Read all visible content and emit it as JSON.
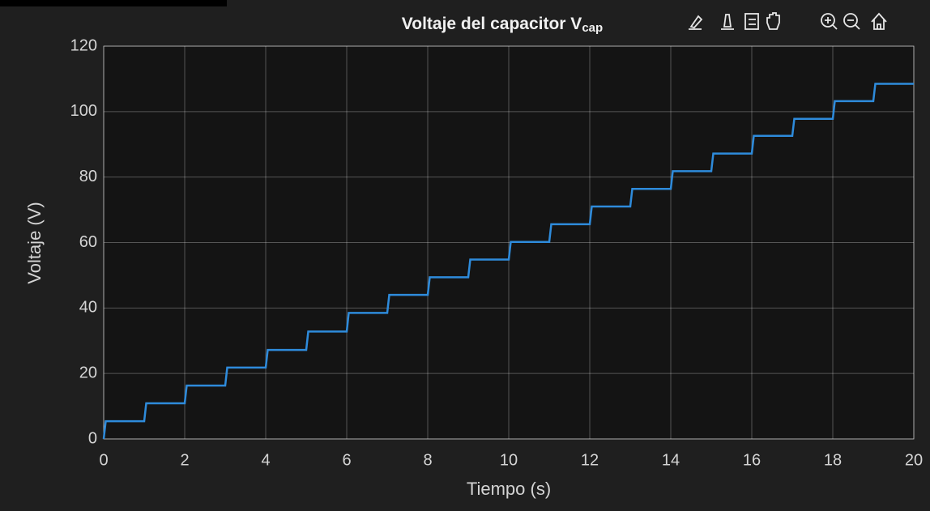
{
  "chart_data": {
    "type": "line",
    "title": "Voltaje del capacitor V",
    "title_subscript": "cap",
    "xlabel": "Tiempo (s)",
    "ylabel": "Voltaje (V)",
    "x": [
      0,
      0.05,
      1,
      1.05,
      2,
      2.05,
      3,
      3.05,
      4,
      4.05,
      5,
      5.05,
      6,
      6.05,
      7,
      7.05,
      8,
      8.05,
      9,
      9.05,
      10,
      10.05,
      11,
      11.05,
      12,
      12.05,
      13,
      13.05,
      14,
      14.05,
      15,
      15.05,
      16,
      16.05,
      17,
      17.05,
      18,
      18.05,
      19,
      19.05,
      20
    ],
    "series": [
      {
        "color": "#2e8bdb",
        "values": [
          0,
          5.4,
          5.4,
          10.9,
          10.9,
          16.3,
          16.3,
          21.8,
          21.8,
          27.2,
          27.2,
          32.8,
          32.8,
          38.5,
          38.5,
          44,
          44,
          49.4,
          49.4,
          54.8,
          54.8,
          60.2,
          60.2,
          65.6,
          65.6,
          71,
          71,
          76.4,
          76.4,
          81.8,
          81.8,
          87.2,
          87.2,
          92.6,
          92.6,
          97.8,
          97.8,
          103.2,
          103.2,
          108.5,
          108.5
        ]
      }
    ],
    "xlim": [
      0,
      20
    ],
    "xticks": [
      0,
      2,
      4,
      6,
      8,
      10,
      12,
      14,
      16,
      18,
      20
    ],
    "ylim": [
      0,
      120
    ],
    "yticks": [
      0,
      20,
      40,
      60,
      80,
      100,
      120
    ],
    "grid": true
  }
}
